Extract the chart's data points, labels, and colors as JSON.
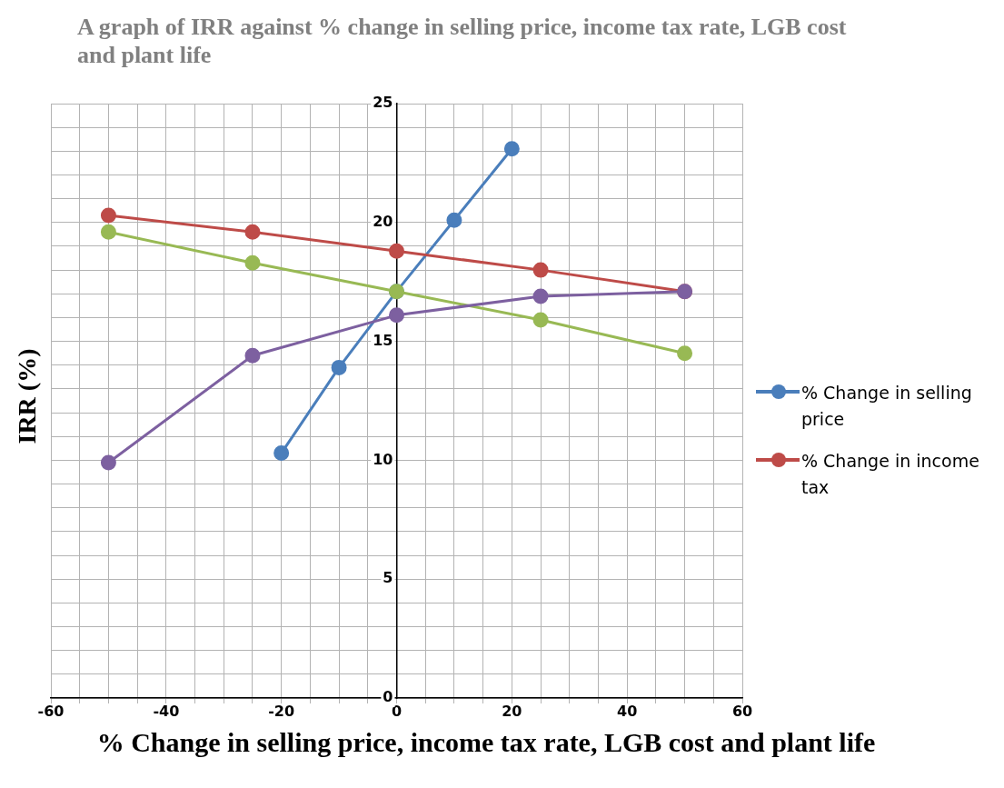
{
  "chart_data": {
    "type": "line",
    "title": "A graph of IRR against % change in selling price, income tax rate, LGB cost and plant life",
    "xlabel": "% Change in selling price, income tax rate, LGB cost and plant life",
    "ylabel": "IRR (%)",
    "x": [
      -50,
      -25,
      0,
      25,
      50
    ],
    "series": [
      {
        "name": "% Change in selling price",
        "color": "#4a7ebb",
        "x": [
          -20,
          -10,
          0,
          10,
          20
        ],
        "values": [
          10.3,
          13.9,
          17.1,
          20.1,
          23.1
        ]
      },
      {
        "name": "% Change in income tax",
        "color": "#be4b48",
        "values": [
          20.3,
          19.6,
          18.8,
          18.0,
          17.1
        ]
      },
      {
        "color": "#98b954",
        "values": [
          19.6,
          18.3,
          17.1,
          15.9,
          14.5
        ]
      },
      {
        "color": "#7d60a0",
        "values": [
          9.9,
          14.4,
          16.1,
          16.9,
          17.1
        ]
      }
    ],
    "xlim": [
      -60,
      60
    ],
    "xticks": [
      -60,
      {
        "value": -55,
        "label": null
      },
      {
        "value": -50,
        "label": null
      },
      {
        "value": -45,
        "label": null
      },
      -40,
      {
        "value": -35,
        "label": null
      },
      {
        "value": -30,
        "label": null
      },
      {
        "value": -25,
        "label": null
      },
      -20,
      {
        "value": -15,
        "label": null
      },
      {
        "value": -10,
        "label": null
      },
      {
        "value": -5,
        "label": null
      },
      0,
      {
        "value": 5,
        "label": null
      },
      {
        "value": 10,
        "label": null
      },
      {
        "value": 15,
        "label": null
      },
      20,
      {
        "value": 25,
        "label": null
      },
      {
        "value": 30,
        "label": null
      },
      {
        "value": 35,
        "label": null
      },
      40,
      {
        "value": 45,
        "label": null
      },
      {
        "value": 50,
        "label": null
      },
      {
        "value": 55,
        "label": null
      },
      60
    ],
    "ylim": [
      0,
      25
    ],
    "yticks": [
      0,
      {
        "value": 1,
        "label": null
      },
      {
        "value": 2,
        "label": null
      },
      {
        "value": 3,
        "label": null
      },
      {
        "value": 4,
        "label": null
      },
      5,
      {
        "value": 6,
        "label": null
      },
      {
        "value": 7,
        "label": null
      },
      {
        "value": 8,
        "label": null
      },
      {
        "value": 9,
        "label": null
      },
      10,
      {
        "value": 11,
        "label": null
      },
      {
        "value": 12,
        "label": null
      },
      {
        "value": 13,
        "label": null
      },
      {
        "value": 14,
        "label": null
      },
      15,
      {
        "value": 16,
        "label": null
      },
      {
        "value": 17,
        "label": null
      },
      {
        "value": 18,
        "label": null
      },
      {
        "value": 19,
        "label": null
      },
      20,
      {
        "value": 21,
        "label": null
      },
      {
        "value": 22,
        "label": null
      },
      {
        "value": 23,
        "label": null
      },
      {
        "value": 24,
        "label": null
      },
      25
    ],
    "grid": true,
    "legend": "right",
    "marker": "circle",
    "line_style": "solid"
  }
}
